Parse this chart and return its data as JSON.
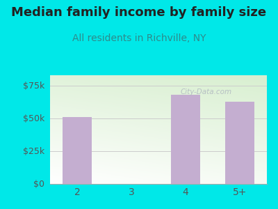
{
  "title": "Median family income by family size",
  "subtitle": "All residents in Richville, NY",
  "categories": [
    "2",
    "3",
    "4",
    "5+"
  ],
  "values": [
    51000,
    0,
    68000,
    63000
  ],
  "bar_color": "#c4aed0",
  "outer_bg": "#00e8e8",
  "title_color": "#222222",
  "subtitle_color": "#2e8b8b",
  "ytick_labels": [
    "$0",
    "$25k",
    "$50k",
    "$75k"
  ],
  "ytick_values": [
    0,
    25000,
    50000,
    75000
  ],
  "ylim": [
    0,
    83000
  ],
  "title_fontsize": 13,
  "subtitle_fontsize": 10,
  "tick_color": "#555555",
  "watermark": "City-Data.com",
  "grid_color": "#cccccc"
}
